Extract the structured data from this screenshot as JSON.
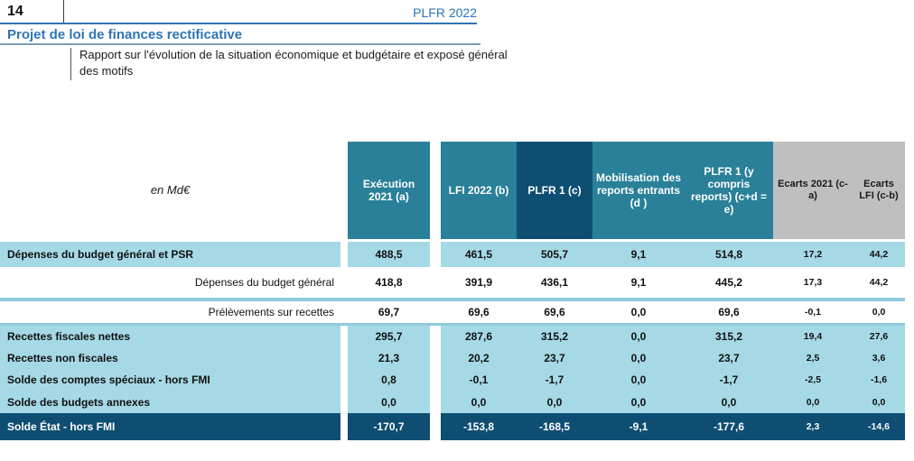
{
  "page": {
    "page_number": "14",
    "doc_ref": "PLFR 2022",
    "title": "Projet de loi de finances rectificative",
    "subtitle": "Rapport sur l'évolution de la situation économique et budgétaire et exposé général des motifs"
  },
  "table": {
    "unit_label": "en Md€",
    "columns": [
      "Exécution 2021 (a)",
      "LFI 2022 (b)",
      "PLFR 1 (c)",
      "Mobilisation des reports entrants (d )",
      "PLFR 1 (y compris reports) (c+d = e)",
      "Ecarts 2021 (c-a)",
      "Ecarts LFI (c-b)"
    ],
    "rows": [
      {
        "label": "Dépenses du budget général et PSR",
        "style": "highlight",
        "values": [
          "488,5",
          "461,5",
          "505,7",
          "9,1",
          "514,8",
          "17,2",
          "44,2"
        ]
      },
      {
        "label": "Dépenses du budget général",
        "style": "sub",
        "values": [
          "418,8",
          "391,9",
          "436,1",
          "9,1",
          "445,2",
          "17,3",
          "44,2"
        ]
      },
      {
        "label": "Prélèvements sur recettes",
        "style": "sub",
        "values": [
          "69,7",
          "69,6",
          "69,6",
          "0,0",
          "69,6",
          "-0,1",
          "0,0"
        ]
      },
      {
        "label": "Recettes fiscales nettes",
        "style": "highlight",
        "values": [
          "295,7",
          "287,6",
          "315,2",
          "0,0",
          "315,2",
          "19,4",
          "27,6"
        ]
      },
      {
        "label": "Recettes non fiscales",
        "style": "highlight",
        "values": [
          "21,3",
          "20,2",
          "23,7",
          "0,0",
          "23,7",
          "2,5",
          "3,6"
        ]
      },
      {
        "label": "Solde des comptes spéciaux - hors FMI",
        "style": "highlight",
        "values": [
          "0,8",
          "-0,1",
          "-1,7",
          "0,0",
          "-1,7",
          "-2,5",
          "-1,6"
        ]
      },
      {
        "label": "Solde des budgets annexes",
        "style": "highlight",
        "values": [
          "0,0",
          "0,0",
          "0,0",
          "0,0",
          "0,0",
          "0,0",
          "0,0"
        ]
      },
      {
        "label": "Solde État - hors FMI",
        "style": "total",
        "values": [
          "-170,7",
          "-153,8",
          "-168,5",
          "-9,1",
          "-177,6",
          "2,3",
          "-14,6"
        ]
      }
    ]
  },
  "colors": {
    "teal_header": "#2a8099",
    "dark_blue": "#0e4e72",
    "light_blue_row": "#a5d9e5",
    "gray_header": "#bfbfbf",
    "title_blue": "#2e75b6"
  }
}
